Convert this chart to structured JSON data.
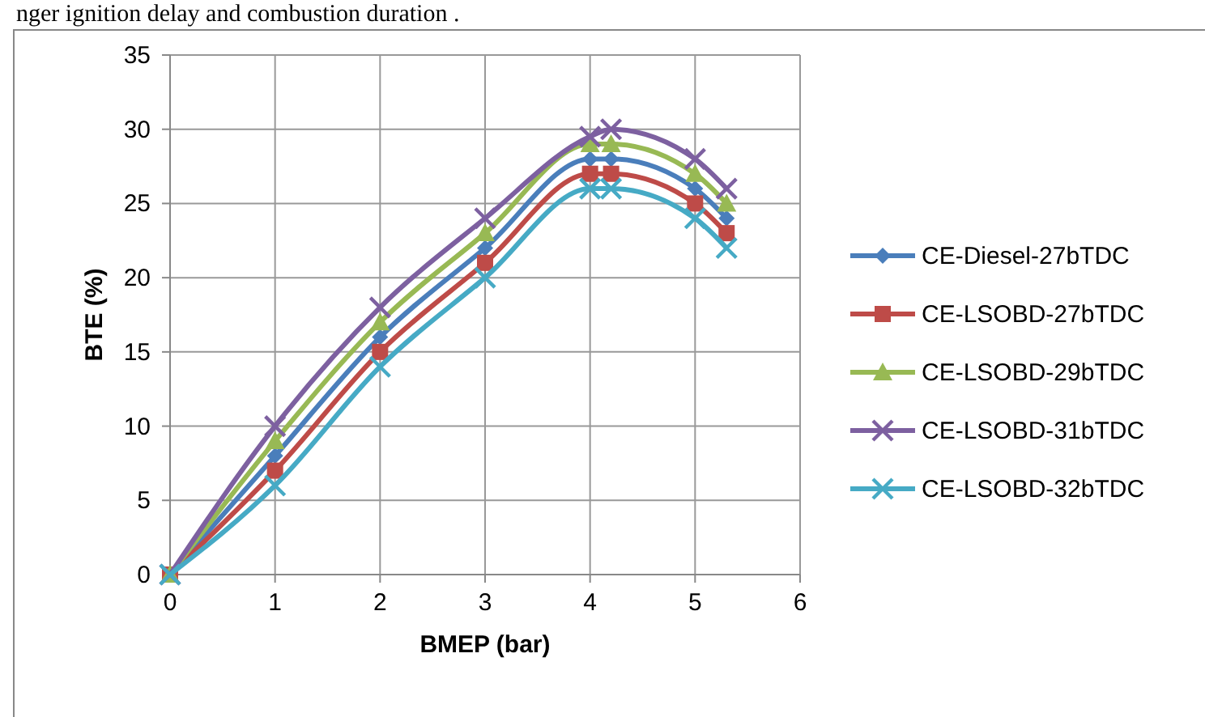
{
  "chart_data": {
    "type": "line",
    "xlabel": "BMEP (bar)",
    "ylabel": "BTE (%)",
    "annotations": [
      "nger ignition delay and combustion duration ."
    ],
    "x": [
      0,
      1,
      2,
      3,
      4,
      4.2,
      5,
      5.3
    ],
    "xlim": [
      0,
      6
    ],
    "xticks": [
      0,
      1,
      2,
      3,
      4,
      5,
      6
    ],
    "ylim": [
      0,
      35
    ],
    "yticks": [
      0,
      5,
      10,
      15,
      20,
      25,
      30,
      35
    ],
    "grid": true,
    "legend": "right",
    "series": [
      {
        "name": "CE-Diesel-27bTDC",
        "color": "#4a7ebb",
        "marker": "diamond",
        "values": [
          0,
          8,
          16,
          22,
          28,
          28,
          26,
          24
        ]
      },
      {
        "name": "CE-LSOBD-27bTDC",
        "color": "#be4b48",
        "marker": "square",
        "values": [
          0,
          7,
          15,
          21,
          27,
          27,
          25,
          23
        ]
      },
      {
        "name": "CE-LSOBD-29bTDC",
        "color": "#98b954",
        "marker": "triangle",
        "values": [
          0,
          9,
          17,
          23,
          29,
          29,
          27,
          25
        ]
      },
      {
        "name": "CE-LSOBD-31bTDC",
        "color": "#7d60a0",
        "marker": "cross",
        "values": [
          0,
          10,
          18,
          24,
          29.5,
          30,
          28,
          26
        ]
      },
      {
        "name": "CE-LSOBD-32bTDC",
        "color": "#46aac5",
        "marker": "cross",
        "values": [
          0,
          6,
          14,
          20,
          26,
          26,
          24,
          22
        ]
      }
    ]
  }
}
